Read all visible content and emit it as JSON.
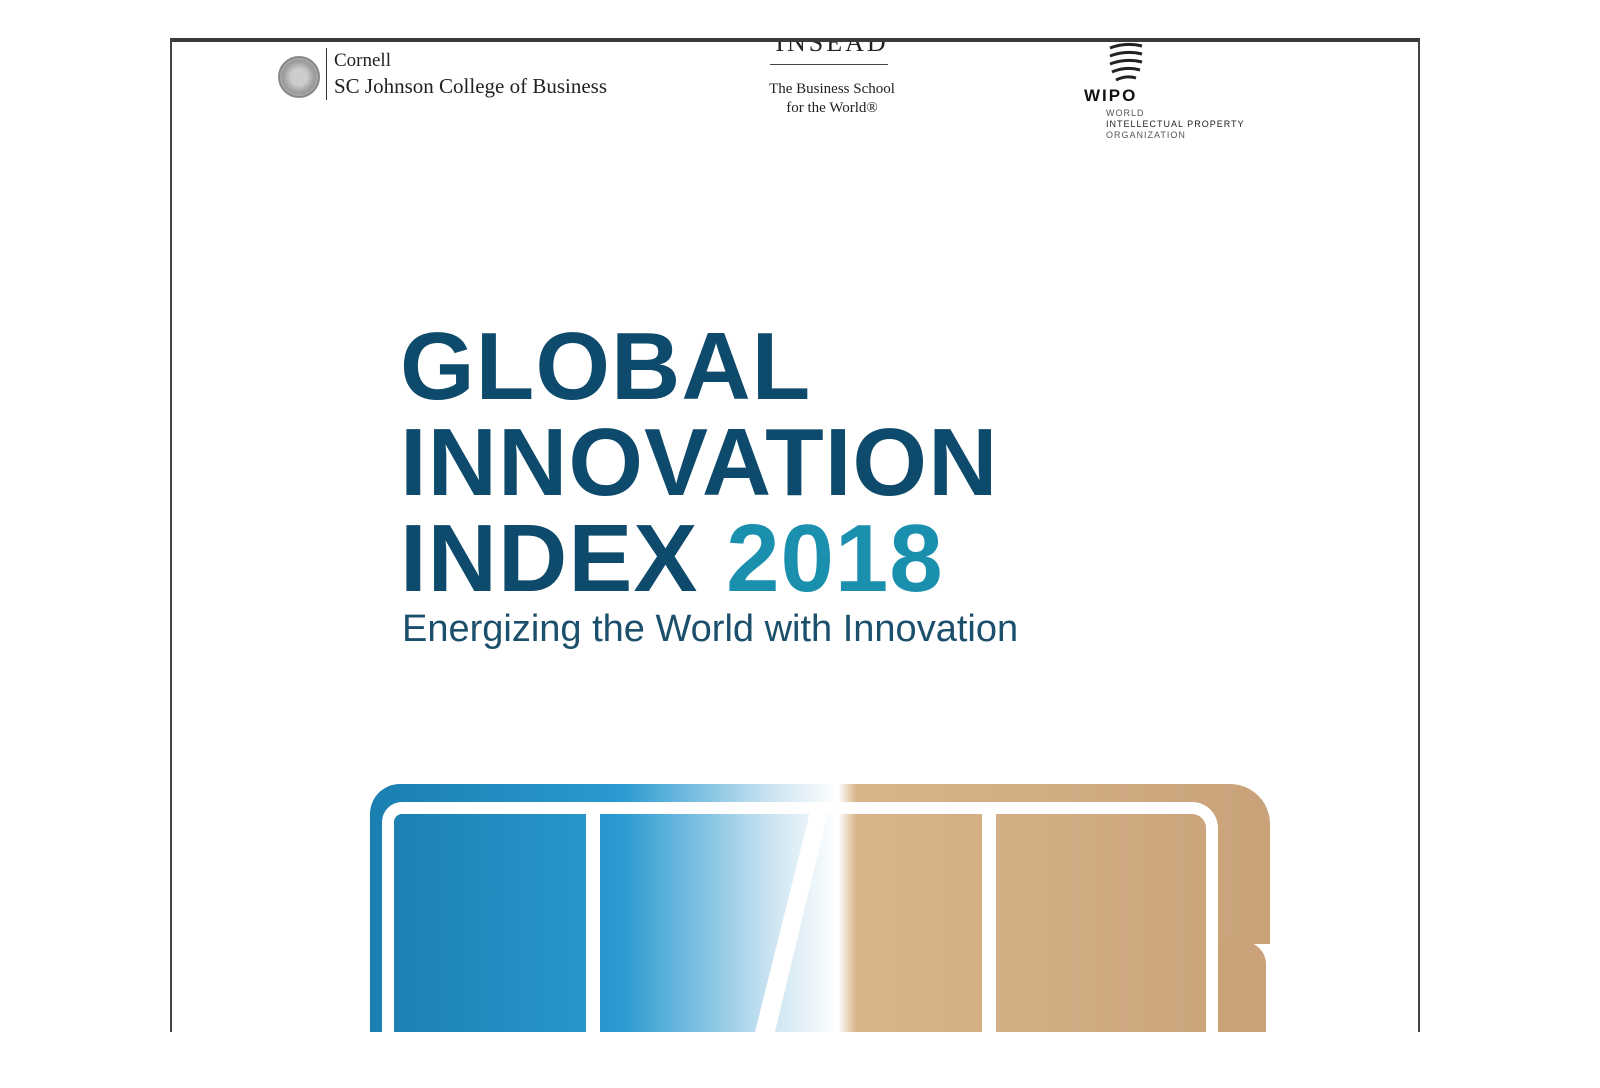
{
  "logos": {
    "cornell": {
      "line1": "Cornell",
      "line2": "SC Johnson College of Business"
    },
    "insead": {
      "name": "INSEAD",
      "tagline1": "The Business School",
      "tagline2": "for the World®"
    },
    "wipo": {
      "name": "WIPO",
      "sub1": "WORLD",
      "sub2": "INTELLECTUAL PROPERTY",
      "sub3": "ORGANIZATION"
    }
  },
  "title": {
    "line1": "GLOBAL",
    "line2": "INNOVATION",
    "line3": "INDEX",
    "year": "2018"
  },
  "subtitle": "Energizing the World with Innovation",
  "colors": {
    "title": "#0e4a6b",
    "year": "#1a8fae"
  }
}
